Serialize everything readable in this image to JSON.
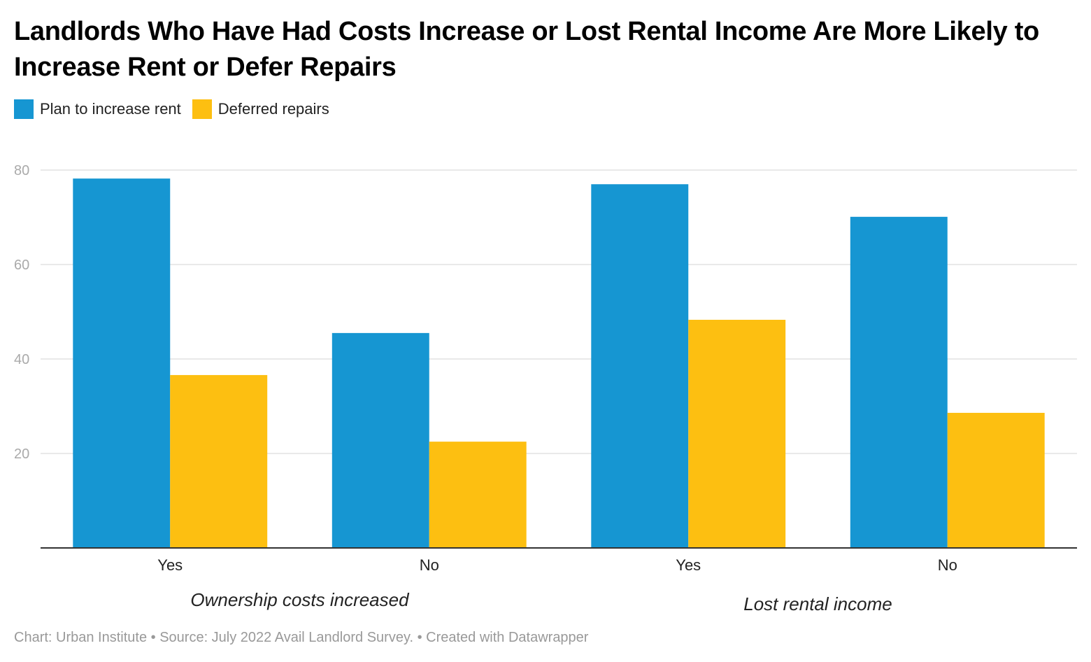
{
  "chart_data": {
    "type": "bar",
    "title": "Landlords Who Have Had Costs Increase or Lost Rental Income Are More Likely to Increase Rent or Defer Repairs",
    "categories": [
      "Yes",
      "No",
      "Yes",
      "No"
    ],
    "groups": [
      {
        "label": "Ownership costs increased",
        "categories": [
          0,
          1
        ]
      },
      {
        "label": "Lost rental income",
        "categories": [
          2,
          3
        ]
      }
    ],
    "series": [
      {
        "name": "Plan to increase rent",
        "color": "#1696d2",
        "values": [
          78.2,
          45.5,
          77.0,
          70.1
        ]
      },
      {
        "name": "Deferred repairs",
        "color": "#fdbf11",
        "values": [
          36.6,
          22.5,
          48.3,
          28.6
        ]
      }
    ],
    "ylim": [
      0,
      80
    ],
    "yticks": [
      20,
      40,
      60,
      80
    ],
    "grid": true,
    "legend_position": "top-left",
    "xlabel": "",
    "ylabel": ""
  },
  "footer": "Chart: Urban Institute • Source: July 2022 Avail Landlord Survey. • Created with Datawrapper"
}
